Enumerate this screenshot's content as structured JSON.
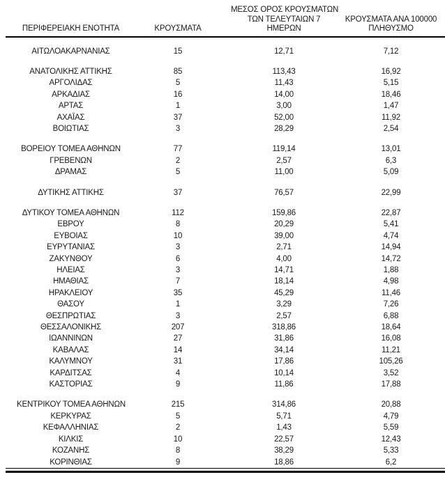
{
  "document": {
    "colors": {
      "background": "#ffffff",
      "text": "#1a1a1a",
      "rule": "#000000"
    },
    "table": {
      "columns": [
        {
          "id": "region",
          "header_lines": [
            "ΠΕΡΙΦΕΡΕΙΑΚΗ ΕΝΟΤΗΤΑ"
          ]
        },
        {
          "id": "cases",
          "header_lines": [
            "ΚΡΟΥΣΜΑΤΑ"
          ]
        },
        {
          "id": "avg7",
          "header_lines": [
            "ΜΕΣΟΣ ΟΡΟΣ ΚΡΟΥΣΜΑΤΩΝ",
            "ΤΩΝ ΤΕΛΕΥΤΑΙΩΝ 7",
            "ΗΜΕΡΩΝ"
          ]
        },
        {
          "id": "per100k",
          "header_lines": [
            "ΚΡΟΥΣΜΑΤΑ ΑΝΑ 100000",
            "ΠΛΗΘΥΣΜΟ"
          ]
        }
      ],
      "groups": [
        {
          "rows": [
            [
              "ΑΙΤΩΛΟΑΚΑΡΝΑΝΙΑΣ",
              "15",
              "12,71",
              "7,12"
            ]
          ]
        },
        {
          "rows": [
            [
              "ΑΝΑΤΟΛΙΚΗΣ ΑΤΤΙΚΗΣ",
              "85",
              "113,43",
              "16,92"
            ],
            [
              "ΑΡΓΟΛΙΔΑΣ",
              "5",
              "11,43",
              "5,15"
            ],
            [
              "ΑΡΚΑΔΙΑΣ",
              "16",
              "14,00",
              "18,46"
            ],
            [
              "ΑΡΤΑΣ",
              "1",
              "3,00",
              "1,47"
            ],
            [
              "ΑΧΑΪΑΣ",
              "37",
              "52,00",
              "11,92"
            ],
            [
              "ΒΟΙΩΤΙΑΣ",
              "3",
              "28,29",
              "2,54"
            ]
          ]
        },
        {
          "rows": [
            [
              "ΒΟΡΕΙΟΥ ΤΟΜΕΑ ΑΘΗΝΩΝ",
              "77",
              "119,14",
              "13,01"
            ],
            [
              "ΓΡΕΒΕΝΩΝ",
              "2",
              "2,57",
              "6,3"
            ],
            [
              "ΔΡΑΜΑΣ",
              "5",
              "11,00",
              "5,09"
            ]
          ]
        },
        {
          "rows": [
            [
              "ΔΥΤΙΚΗΣ ΑΤΤΙΚΗΣ",
              "37",
              "76,57",
              "22,99"
            ]
          ]
        },
        {
          "rows": [
            [
              "ΔΥΤΙΚΟΥ ΤΟΜΕΑ ΑΘΗΝΩΝ",
              "112",
              "159,86",
              "22,87"
            ],
            [
              "ΕΒΡΟΥ",
              "8",
              "20,29",
              "5,41"
            ],
            [
              "ΕΥΒΟΙΑΣ",
              "10",
              "39,00",
              "4,74"
            ],
            [
              "ΕΥΡΥΤΑΝΙΑΣ",
              "3",
              "2,71",
              "14,94"
            ],
            [
              "ΖΑΚΥΝΘΟΥ",
              "6",
              "4,00",
              "14,72"
            ],
            [
              "ΗΛΕΙΑΣ",
              "3",
              "14,71",
              "1,88"
            ],
            [
              "ΗΜΑΘΙΑΣ",
              "7",
              "18,14",
              "4,98"
            ],
            [
              "ΗΡΑΚΛΕΙΟΥ",
              "35",
              "45,29",
              "11,46"
            ],
            [
              "ΘΑΣΟΥ",
              "1",
              "3,29",
              "7,26"
            ],
            [
              "ΘΕΣΠΡΩΤΙΑΣ",
              "3",
              "2,57",
              "6,88"
            ],
            [
              "ΘΕΣΣΑΛΟΝΙΚΗΣ",
              "207",
              "318,86",
              "18,64"
            ],
            [
              "ΙΩΑΝΝΙΝΩΝ",
              "27",
              "31,86",
              "16,08"
            ],
            [
              "ΚΑΒΑΛΑΣ",
              "14",
              "34,14",
              "11,21"
            ],
            [
              "ΚΑΛΥΜΝΟΥ",
              "31",
              "17,86",
              "105,26"
            ],
            [
              "ΚΑΡΔΙΤΣΑΣ",
              "4",
              "10,14",
              "3,52"
            ],
            [
              "ΚΑΣΤΟΡΙΑΣ",
              "9",
              "11,86",
              "17,88"
            ]
          ]
        },
        {
          "rows": [
            [
              "ΚΕΝΤΡΙΚΟΥ ΤΟΜΕΑ ΑΘΗΝΩΝ",
              "215",
              "314,86",
              "20,88"
            ],
            [
              "ΚΕΡΚΥΡΑΣ",
              "5",
              "5,71",
              "4,79"
            ],
            [
              "ΚΕΦΑΛΛΗΝΙΑΣ",
              "2",
              "1,43",
              "5,59"
            ],
            [
              "ΚΙΛΚΙΣ",
              "10",
              "22,57",
              "12,43"
            ],
            [
              "ΚΟΖΑΝΗΣ",
              "8",
              "38,29",
              "5,33"
            ],
            [
              "ΚΟΡΙΝΘΙΑΣ",
              "9",
              "18,86",
              "6,2"
            ]
          ]
        }
      ]
    }
  }
}
